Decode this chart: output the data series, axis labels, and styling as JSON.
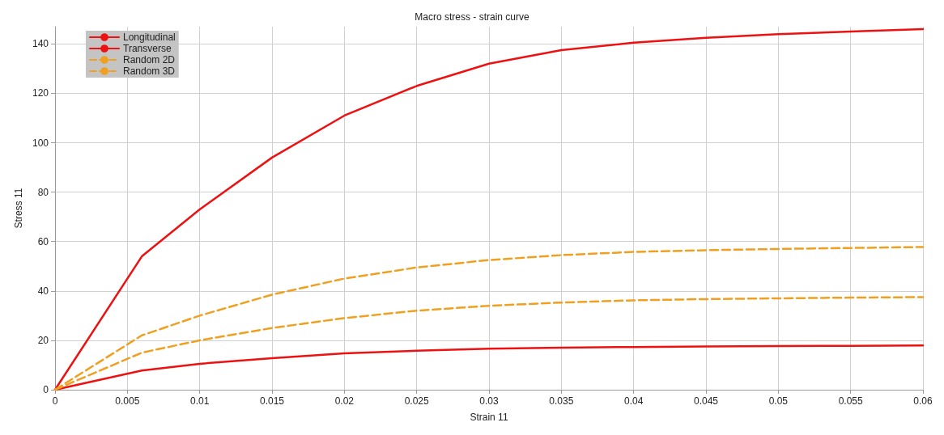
{
  "chart_data": {
    "type": "line",
    "title": "Macro stress - strain curve",
    "xlabel": "Strain 11",
    "ylabel": "Stress 11",
    "xlim": [
      0,
      0.06
    ],
    "xticks": [
      0,
      0.005,
      0.01,
      0.015,
      0.02,
      0.025,
      0.03,
      0.035,
      0.04,
      0.045,
      0.05,
      0.055,
      0.06
    ],
    "ylim": [
      0,
      147
    ],
    "yticks": [
      0,
      20,
      40,
      60,
      80,
      100,
      120,
      140
    ],
    "grid": true,
    "legend": "top left",
    "marker": "none",
    "series": [
      {
        "name": "Longitudinal",
        "color": "#ee1111",
        "line_style": "solid",
        "x": [
          0,
          0.006,
          0.01,
          0.015,
          0.02,
          0.025,
          0.03,
          0.035,
          0.04,
          0.045,
          0.05,
          0.055,
          0.06
        ],
        "values": [
          0,
          54,
          73,
          94,
          111,
          123,
          132,
          137.5,
          140.5,
          142.5,
          144,
          145,
          146
        ]
      },
      {
        "name": "Transverse",
        "color": "#ee1111",
        "line_style": "solid",
        "x": [
          0,
          0.006,
          0.01,
          0.015,
          0.02,
          0.025,
          0.03,
          0.035,
          0.04,
          0.045,
          0.05,
          0.055,
          0.06
        ],
        "values": [
          0,
          7.8,
          10.5,
          12.8,
          14.7,
          15.8,
          16.6,
          17,
          17.3,
          17.5,
          17.7,
          17.8,
          17.9
        ]
      },
      {
        "name": "Random 2D",
        "color": "#f0a020",
        "line_style": "dashed",
        "x": [
          0,
          0.006,
          0.01,
          0.015,
          0.02,
          0.025,
          0.03,
          0.035,
          0.04,
          0.045,
          0.05,
          0.055,
          0.06
        ],
        "values": [
          0,
          22,
          30,
          38.5,
          45,
          49.5,
          52.5,
          54.5,
          55.8,
          56.5,
          57,
          57.4,
          57.8
        ]
      },
      {
        "name": "Random 3D",
        "color": "#f0a020",
        "line_style": "dashed",
        "x": [
          0,
          0.006,
          0.01,
          0.015,
          0.02,
          0.025,
          0.03,
          0.035,
          0.04,
          0.045,
          0.05,
          0.055,
          0.06
        ],
        "values": [
          0,
          15,
          20,
          25,
          29,
          32,
          34,
          35.3,
          36.2,
          36.7,
          37,
          37.3,
          37.5
        ]
      }
    ]
  }
}
